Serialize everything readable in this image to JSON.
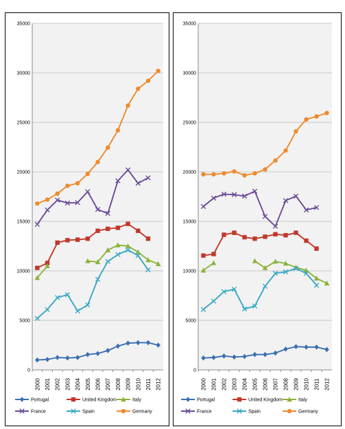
{
  "colors": {
    "Portugal": "#3a6fb0",
    "United Kingdom": "#c0392b",
    "Italy": "#8db33c",
    "France": "#6a4a96",
    "Spain": "#38a8c4",
    "Germany": "#f08a2c",
    "grid": "#c8c8c8",
    "plot_bg": "#f2f2f2"
  },
  "markers": {
    "Portugal": "diamond",
    "United Kingdom": "square",
    "Italy": "triangle",
    "France": "x",
    "Spain": "x",
    "Germany": "circle"
  },
  "chart_data": [
    {
      "type": "line",
      "title": "",
      "xlabel": "",
      "ylabel": "",
      "x": [
        "2000",
        "2001",
        "2002",
        "2003",
        "2004",
        "2005",
        "2006",
        "2007",
        "2008",
        "2009",
        "2010",
        "2011",
        "2012"
      ],
      "y_ticks": [
        0,
        5000,
        10000,
        15000,
        20000,
        25000,
        30000,
        35000
      ],
      "ylim": [
        0,
        35000
      ],
      "grid": true,
      "legend": "bottom",
      "series": [
        {
          "name": "Portugal",
          "values": [
            1000,
            1050,
            1250,
            1200,
            1250,
            1550,
            1650,
            1950,
            2400,
            2700,
            2750,
            2750,
            2500
          ]
        },
        {
          "name": "United Kingdom",
          "values": [
            10300,
            10800,
            12850,
            13100,
            13150,
            13250,
            14050,
            14250,
            14350,
            14750,
            14050,
            13250,
            null
          ]
        },
        {
          "name": "Italy",
          "values": [
            9300,
            10500,
            null,
            null,
            null,
            11000,
            10900,
            12100,
            12600,
            12500,
            11900,
            11100,
            10700
          ]
        },
        {
          "name": "France",
          "values": [
            14700,
            16150,
            17150,
            16850,
            16900,
            18000,
            16200,
            15800,
            19100,
            20200,
            18850,
            19400,
            null
          ]
        },
        {
          "name": "Spain",
          "values": [
            5200,
            6100,
            7300,
            7600,
            5950,
            6550,
            9150,
            10950,
            11650,
            12100,
            11550,
            10100,
            null
          ]
        },
        {
          "name": "Germany",
          "values": [
            16800,
            17200,
            17800,
            18600,
            18850,
            19800,
            21000,
            22450,
            24200,
            26700,
            28400,
            29200,
            30200
          ]
        }
      ]
    },
    {
      "type": "line",
      "title": "",
      "xlabel": "",
      "ylabel": "",
      "x": [
        "2000",
        "2001",
        "2002",
        "2003",
        "2004",
        "2005",
        "2006",
        "2007",
        "2008",
        "2009",
        "2010",
        "2011",
        "2012"
      ],
      "y_ticks": [
        0,
        5000,
        10000,
        15000,
        20000,
        25000,
        30000,
        35000
      ],
      "ylim": [
        0,
        35000
      ],
      "grid": true,
      "legend": "bottom",
      "series": [
        {
          "name": "Portugal",
          "values": [
            1200,
            1250,
            1400,
            1300,
            1350,
            1550,
            1550,
            1700,
            2100,
            2350,
            2300,
            2300,
            2050
          ]
        },
        {
          "name": "United Kingdom",
          "values": [
            11550,
            11700,
            13650,
            13850,
            13400,
            13250,
            13450,
            13700,
            13600,
            13850,
            13050,
            12250,
            null
          ]
        },
        {
          "name": "Italy",
          "values": [
            10050,
            10800,
            null,
            null,
            null,
            11000,
            10300,
            10950,
            10750,
            10350,
            10050,
            9250,
            8750
          ]
        },
        {
          "name": "France",
          "values": [
            16500,
            17350,
            17750,
            17700,
            17550,
            18050,
            15500,
            14500,
            17100,
            17550,
            16150,
            16400,
            null
          ]
        },
        {
          "name": "Spain",
          "values": [
            6100,
            6950,
            7900,
            8150,
            6150,
            6450,
            8450,
            9750,
            9900,
            10250,
            9750,
            8550,
            null
          ]
        },
        {
          "name": "Germany",
          "values": [
            19750,
            19750,
            19850,
            20050,
            19650,
            19850,
            20250,
            21150,
            22150,
            24100,
            25300,
            25600,
            25950
          ]
        }
      ]
    }
  ]
}
